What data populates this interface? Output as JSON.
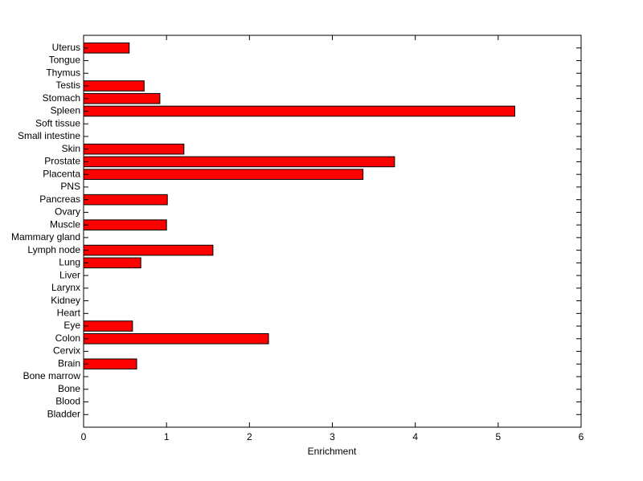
{
  "chart_data": {
    "type": "barh",
    "xlabel": "Enrichment",
    "categories": [
      "Bladder",
      "Blood",
      "Bone",
      "Bone marrow",
      "Brain",
      "Cervix",
      "Colon",
      "Eye",
      "Heart",
      "Kidney",
      "Larynx",
      "Liver",
      "Lung",
      "Lymph node",
      "Mammary gland",
      "Muscle",
      "Ovary",
      "Pancreas",
      "PNS",
      "Placenta",
      "Prostate",
      "Skin",
      "Small intestine",
      "Soft tissue",
      "Spleen",
      "Stomach",
      "Testis",
      "Thymus",
      "Tongue",
      "Uterus"
    ],
    "values": [
      0,
      0,
      0,
      0,
      0.64,
      0,
      2.23,
      0.59,
      0,
      0,
      0,
      0,
      0.69,
      1.56,
      0,
      1.0,
      0,
      1.01,
      0,
      3.37,
      3.75,
      1.21,
      0,
      0,
      5.2,
      0.92,
      0.73,
      0,
      0,
      0.55
    ],
    "color": "#ff0000",
    "xlim": [
      0,
      6
    ],
    "xticks": [
      0,
      1,
      2,
      3,
      4,
      5,
      6
    ]
  }
}
